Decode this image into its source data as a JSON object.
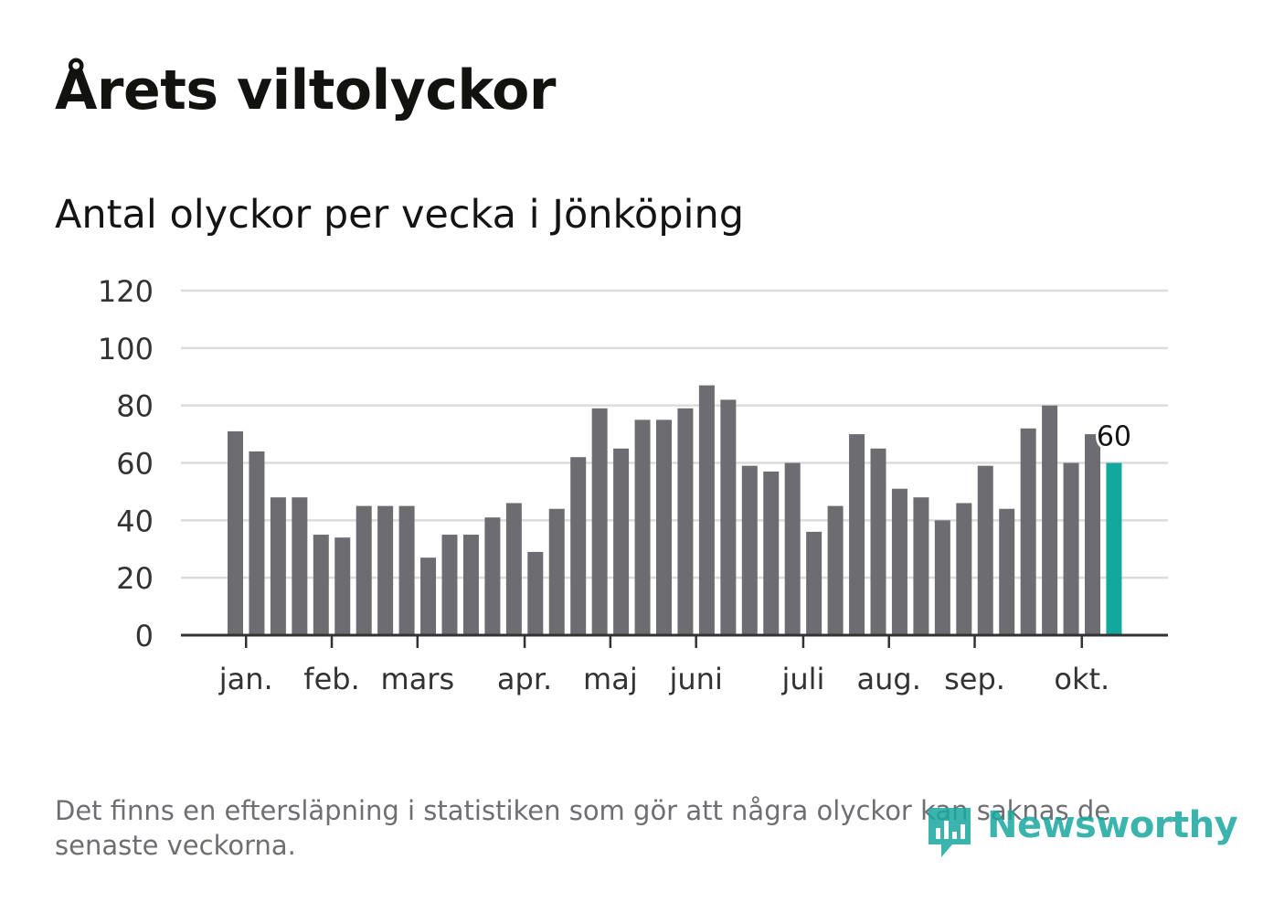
{
  "title": "Årets viltolyckor",
  "subtitle": "Antal olyckor per vecka i Jönköping",
  "footnote": "Det finns en eftersläpning i statistiken som gör att några olyckor kan saknas de senaste veckorna.",
  "brand": {
    "name": "Newsworthy",
    "icon": "newsworthy-logo-icon"
  },
  "colors": {
    "bar": "#6d6c71",
    "highlight": "#13a89e",
    "grid": "#dcdcdc",
    "axis": "#333333",
    "text": "#141414",
    "muted": "#6e6e73",
    "brand": "#1aa8a0"
  },
  "chart_data": {
    "type": "bar",
    "title": "Antal olyckor per vecka i Jönköping",
    "xlabel": "",
    "ylabel": "",
    "ylim": [
      0,
      120
    ],
    "yticks": [
      0,
      20,
      40,
      60,
      80,
      100,
      120
    ],
    "grid": true,
    "values": [
      71,
      64,
      48,
      48,
      35,
      34,
      45,
      45,
      45,
      27,
      35,
      35,
      41,
      46,
      29,
      44,
      62,
      79,
      65,
      75,
      75,
      79,
      87,
      82,
      59,
      57,
      60,
      36,
      45,
      70,
      65,
      51,
      48,
      40,
      46,
      59,
      44,
      72,
      80,
      60,
      70,
      60
    ],
    "highlight_index": 41,
    "highlight_label": "60",
    "month_labels": [
      {
        "label": "jan.",
        "bar": 0.5
      },
      {
        "label": "feb.",
        "bar": 4.5
      },
      {
        "label": "mars",
        "bar": 8.5
      },
      {
        "label": "apr.",
        "bar": 13.5
      },
      {
        "label": "maj",
        "bar": 17.5
      },
      {
        "label": "juni",
        "bar": 21.5
      },
      {
        "label": "juli",
        "bar": 26.5
      },
      {
        "label": "aug.",
        "bar": 30.5
      },
      {
        "label": "sep.",
        "bar": 34.5
      },
      {
        "label": "okt.",
        "bar": 39.5
      }
    ]
  }
}
